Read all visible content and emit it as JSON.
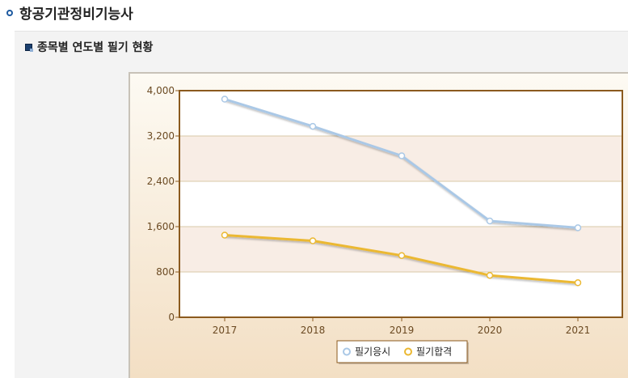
{
  "page": {
    "title": "항공기관정비기능사"
  },
  "section": {
    "title": "종목별 연도별 필기 현황"
  },
  "colors": {
    "frame_border": "#8b5a1e",
    "band": "#f8ede5",
    "series_applicants": "#aac8e6",
    "series_passers": "#ebb832",
    "axis_text": "#6b4a22"
  },
  "chart_data": {
    "type": "line",
    "categories": [
      "2017",
      "2018",
      "2019",
      "2020",
      "2021"
    ],
    "ylim": [
      0,
      4000
    ],
    "y_ticks": [
      "0",
      "800",
      "1,600",
      "2,400",
      "3,200",
      "4,000"
    ],
    "y_tick_values": [
      0,
      800,
      1600,
      2400,
      3200,
      4000
    ],
    "series": [
      {
        "name": "필기응시",
        "values": [
          3850,
          3370,
          2850,
          1700,
          1580
        ],
        "color": "#aac8e6"
      },
      {
        "name": "필기합격",
        "values": [
          1450,
          1350,
          1090,
          740,
          610
        ],
        "color": "#ebb832"
      }
    ],
    "legend_position": "bottom-center",
    "grid": true
  }
}
